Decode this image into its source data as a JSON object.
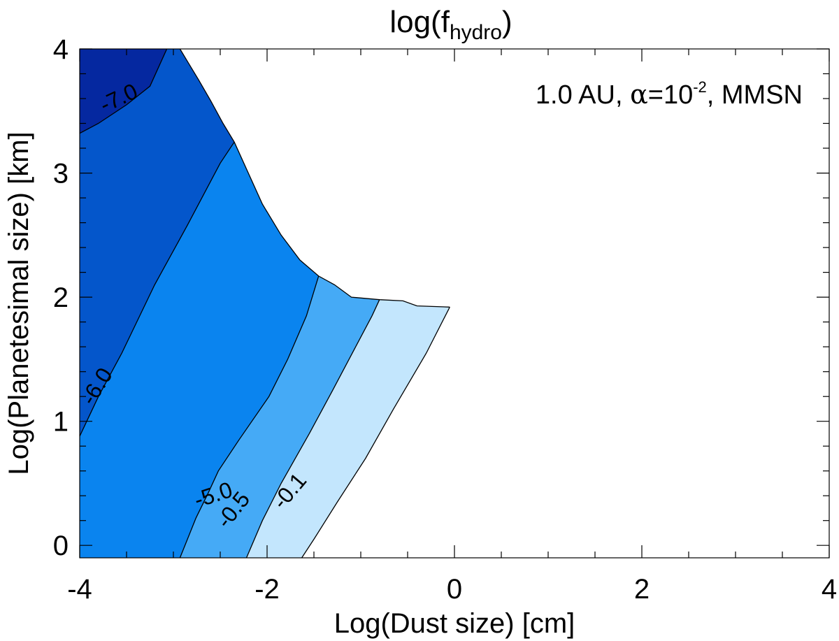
{
  "chart_data": {
    "type": "contour",
    "title": {
      "base": "log(f",
      "sub": "hydro",
      "close": ")"
    },
    "xlabel": "Log(Dust size) [cm]",
    "ylabel": "Log(Planetesimal size) [km]",
    "annotation": {
      "pre": "1.0 AU, ",
      "alpha": "α",
      "mid": "=10",
      "sup": "-2",
      "post": ", MMSN"
    },
    "xlim": [
      -4,
      4
    ],
    "ylim": [
      -0.1,
      4
    ],
    "xticks": [
      -4,
      -2,
      0,
      2,
      4
    ],
    "xtick_labels": [
      "-4",
      "-2",
      "0",
      "2",
      "4"
    ],
    "yticks": [
      0,
      1,
      2,
      3,
      4
    ],
    "ytick_labels": [
      "0",
      "1",
      "2",
      "3",
      "4"
    ],
    "contour_labels": [
      "-7.0",
      "-6.0",
      "-5.0",
      "-0.5",
      "-0.1"
    ],
    "regions": [
      {
        "level": "below -7.0",
        "color": "#0528a0",
        "points": [
          [
            -4,
            4
          ],
          [
            -3.07,
            4
          ],
          [
            -3.25,
            3.7
          ],
          [
            -3.5,
            3.55
          ],
          [
            -3.8,
            3.4
          ],
          [
            -4,
            3.32
          ]
        ]
      },
      {
        "level": "-7.0 to -6.0",
        "color": "#0456cb",
        "points": [
          [
            -4,
            3.32
          ],
          [
            -3.8,
            3.4
          ],
          [
            -3.5,
            3.55
          ],
          [
            -3.25,
            3.7
          ],
          [
            -3.07,
            4
          ],
          [
            -2.93,
            4
          ],
          [
            -2.85,
            3.9
          ],
          [
            -2.73,
            3.75
          ],
          [
            -2.6,
            3.58
          ],
          [
            -2.47,
            3.4
          ],
          [
            -2.35,
            3.25
          ],
          [
            -2.5,
            3.08
          ],
          [
            -2.85,
            2.58
          ],
          [
            -3.2,
            2.1
          ],
          [
            -3.55,
            1.55
          ],
          [
            -3.8,
            1.2
          ],
          [
            -4,
            0.88
          ]
        ]
      },
      {
        "level": "-6.0 to -5.0",
        "color": "#0a84ef",
        "points": [
          [
            -4,
            0.88
          ],
          [
            -3.8,
            1.2
          ],
          [
            -3.55,
            1.55
          ],
          [
            -3.2,
            2.1
          ],
          [
            -2.85,
            2.58
          ],
          [
            -2.5,
            3.08
          ],
          [
            -2.35,
            3.25
          ],
          [
            -2.2,
            3.0
          ],
          [
            -2.05,
            2.75
          ],
          [
            -1.85,
            2.5
          ],
          [
            -1.65,
            2.3
          ],
          [
            -1.45,
            2.17
          ],
          [
            -1.58,
            1.85
          ],
          [
            -1.78,
            1.5
          ],
          [
            -1.98,
            1.2
          ],
          [
            -2.3,
            0.85
          ],
          [
            -2.52,
            0.6
          ],
          [
            -2.63,
            0.42
          ],
          [
            -2.76,
            0.22
          ],
          [
            -2.85,
            0.05
          ],
          [
            -2.93,
            -0.1
          ],
          [
            -4,
            -0.1
          ]
        ]
      },
      {
        "level": "-5.0 to -0.5",
        "color": "#45aaf6",
        "points": [
          [
            -2.93,
            -0.1
          ],
          [
            -2.85,
            0.05
          ],
          [
            -2.76,
            0.22
          ],
          [
            -2.63,
            0.42
          ],
          [
            -2.52,
            0.6
          ],
          [
            -2.3,
            0.85
          ],
          [
            -1.98,
            1.2
          ],
          [
            -1.78,
            1.5
          ],
          [
            -1.58,
            1.85
          ],
          [
            -1.45,
            2.17
          ],
          [
            -1.28,
            2.1
          ],
          [
            -1.1,
            2.0
          ],
          [
            -0.8,
            1.98
          ],
          [
            -0.88,
            1.85
          ],
          [
            -1.3,
            1.25
          ],
          [
            -1.55,
            0.9
          ],
          [
            -1.85,
            0.5
          ],
          [
            -2.05,
            0.2
          ],
          [
            -2.22,
            -0.1
          ]
        ]
      },
      {
        "level": "-0.5 to -0.1",
        "color": "#c3e6fd",
        "points": [
          [
            -2.22,
            -0.1
          ],
          [
            -2.05,
            0.2
          ],
          [
            -1.85,
            0.5
          ],
          [
            -1.55,
            0.9
          ],
          [
            -1.3,
            1.25
          ],
          [
            -0.88,
            1.85
          ],
          [
            -0.8,
            1.98
          ],
          [
            -0.55,
            1.97
          ],
          [
            -0.4,
            1.93
          ],
          [
            -0.05,
            1.92
          ],
          [
            -0.3,
            1.55
          ],
          [
            -0.65,
            1.1
          ],
          [
            -0.95,
            0.7
          ],
          [
            -1.25,
            0.35
          ],
          [
            -1.5,
            0.05
          ],
          [
            -1.63,
            -0.1
          ]
        ]
      }
    ],
    "contour_lines": [
      [
        [
          -4,
          3.32
        ],
        [
          -3.8,
          3.4
        ],
        [
          -3.5,
          3.55
        ],
        [
          -3.25,
          3.7
        ],
        [
          -3.07,
          4
        ]
      ],
      [
        [
          -4,
          0.88
        ],
        [
          -3.8,
          1.2
        ],
        [
          -3.55,
          1.55
        ],
        [
          -3.2,
          2.1
        ],
        [
          -2.85,
          2.58
        ],
        [
          -2.5,
          3.08
        ],
        [
          -2.35,
          3.25
        ]
      ],
      [
        [
          -2.93,
          -0.1
        ],
        [
          -2.85,
          0.05
        ],
        [
          -2.76,
          0.22
        ],
        [
          -2.63,
          0.42
        ],
        [
          -2.52,
          0.6
        ],
        [
          -2.3,
          0.85
        ],
        [
          -1.98,
          1.2
        ],
        [
          -1.78,
          1.5
        ],
        [
          -1.58,
          1.85
        ],
        [
          -1.45,
          2.17
        ]
      ],
      [
        [
          -2.22,
          -0.1
        ],
        [
          -2.05,
          0.2
        ],
        [
          -1.85,
          0.5
        ],
        [
          -1.55,
          0.9
        ],
        [
          -1.3,
          1.25
        ],
        [
          -0.88,
          1.85
        ],
        [
          -0.8,
          1.98
        ]
      ],
      [
        [
          -1.63,
          -0.1
        ],
        [
          -1.5,
          0.05
        ],
        [
          -1.25,
          0.35
        ],
        [
          -0.95,
          0.7
        ],
        [
          -0.65,
          1.1
        ],
        [
          -0.3,
          1.55
        ],
        [
          -0.05,
          1.92
        ]
      ],
      [
        [
          -2.93,
          4
        ],
        [
          -2.85,
          3.9
        ],
        [
          -2.73,
          3.75
        ],
        [
          -2.6,
          3.58
        ],
        [
          -2.47,
          3.4
        ],
        [
          -2.35,
          3.25
        ],
        [
          -2.2,
          3.0
        ],
        [
          -2.05,
          2.75
        ],
        [
          -1.85,
          2.5
        ],
        [
          -1.65,
          2.3
        ],
        [
          -1.45,
          2.17
        ],
        [
          -1.28,
          2.1
        ],
        [
          -1.1,
          2.0
        ],
        [
          -0.8,
          1.98
        ],
        [
          -0.55,
          1.97
        ],
        [
          -0.4,
          1.93
        ],
        [
          -0.05,
          1.92
        ]
      ]
    ]
  }
}
